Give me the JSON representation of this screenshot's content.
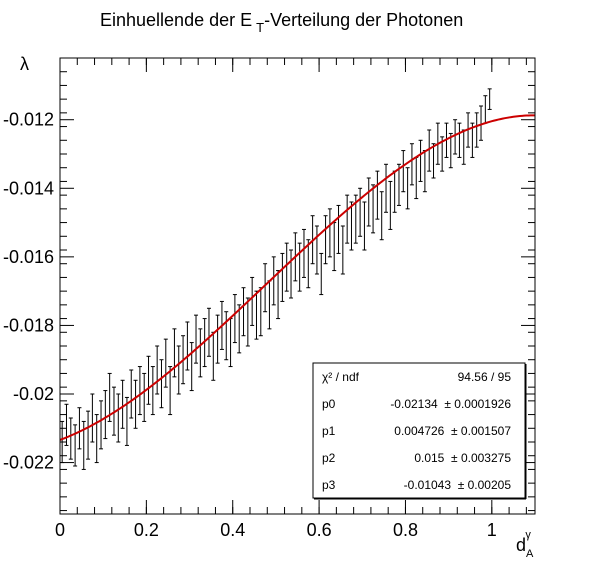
{
  "chart_data": {
    "type": "scatter",
    "title_main": "Einhuellende der E",
    "title_sub": "T",
    "title_rest": "-Verteilung der Photonen",
    "ylabel": "λ",
    "xlabel_main": "d",
    "xlabel_sub": "A",
    "xlabel_sup": "γ",
    "xlim": [
      0,
      1.1
    ],
    "ylim": [
      -0.0235,
      -0.0102
    ],
    "x_ticks": [
      {
        "v": 0,
        "label": "0"
      },
      {
        "v": 0.2,
        "label": "0.2"
      },
      {
        "v": 0.4,
        "label": "0.4"
      },
      {
        "v": 0.6,
        "label": "0.6"
      },
      {
        "v": 0.8,
        "label": "0.8"
      },
      {
        "v": 1.0,
        "label": "1"
      }
    ],
    "y_ticks": [
      {
        "v": -0.022,
        "label": "-0.022"
      },
      {
        "v": -0.02,
        "label": "-0.02"
      },
      {
        "v": -0.018,
        "label": "-0.018"
      },
      {
        "v": -0.016,
        "label": "-0.016"
      },
      {
        "v": -0.014,
        "label": "-0.014"
      },
      {
        "v": -0.012,
        "label": "-0.012"
      }
    ],
    "fit_color": "#cc0000",
    "fit_params": [
      -0.02134,
      0.004726,
      0.015,
      -0.01043
    ],
    "points": [
      [
        0.005,
        -0.0214,
        0.0006
      ],
      [
        0.015,
        -0.0209,
        0.0006
      ],
      [
        0.025,
        -0.0213,
        0.0006
      ],
      [
        0.035,
        -0.0215,
        0.0006
      ],
      [
        0.045,
        -0.021,
        0.0006
      ],
      [
        0.055,
        -0.0215,
        0.0007
      ],
      [
        0.065,
        -0.0212,
        0.0007
      ],
      [
        0.075,
        -0.0207,
        0.0007
      ],
      [
        0.085,
        -0.0213,
        0.0007
      ],
      [
        0.095,
        -0.0209,
        0.0007
      ],
      [
        0.105,
        -0.0206,
        0.0007
      ],
      [
        0.115,
        -0.0201,
        0.0007
      ],
      [
        0.125,
        -0.0205,
        0.0007
      ],
      [
        0.135,
        -0.0207,
        0.0007
      ],
      [
        0.145,
        -0.0203,
        0.0007
      ],
      [
        0.155,
        -0.0208,
        0.0007
      ],
      [
        0.165,
        -0.02,
        0.0007
      ],
      [
        0.175,
        -0.0203,
        0.0007
      ],
      [
        0.185,
        -0.0199,
        0.0007
      ],
      [
        0.195,
        -0.0201,
        0.0007
      ],
      [
        0.205,
        -0.0196,
        0.0007
      ],
      [
        0.215,
        -0.0199,
        0.0007
      ],
      [
        0.225,
        -0.0193,
        0.0007
      ],
      [
        0.235,
        -0.0197,
        0.0007
      ],
      [
        0.245,
        -0.0191,
        0.0007
      ],
      [
        0.255,
        -0.0199,
        0.0007
      ],
      [
        0.265,
        -0.0188,
        0.0007
      ],
      [
        0.275,
        -0.0193,
        0.0007
      ],
      [
        0.285,
        -0.019,
        0.0007
      ],
      [
        0.295,
        -0.0186,
        0.0007
      ],
      [
        0.305,
        -0.0192,
        0.0007
      ],
      [
        0.315,
        -0.0184,
        0.0007
      ],
      [
        0.325,
        -0.0188,
        0.0007
      ],
      [
        0.335,
        -0.0185,
        0.0007
      ],
      [
        0.345,
        -0.0182,
        0.0007
      ],
      [
        0.355,
        -0.0189,
        0.0007
      ],
      [
        0.365,
        -0.0184,
        0.0007
      ],
      [
        0.375,
        -0.018,
        0.0007
      ],
      [
        0.385,
        -0.0183,
        0.0007
      ],
      [
        0.395,
        -0.0185,
        0.0007
      ],
      [
        0.405,
        -0.0178,
        0.0007
      ],
      [
        0.415,
        -0.0181,
        0.0007
      ],
      [
        0.425,
        -0.0176,
        0.0007
      ],
      [
        0.435,
        -0.0179,
        0.0007
      ],
      [
        0.445,
        -0.0173,
        0.0007
      ],
      [
        0.455,
        -0.0177,
        0.0007
      ],
      [
        0.465,
        -0.0176,
        0.0007
      ],
      [
        0.475,
        -0.0169,
        0.0007
      ],
      [
        0.485,
        -0.0174,
        0.0007
      ],
      [
        0.495,
        -0.0167,
        0.0007
      ],
      [
        0.505,
        -0.0171,
        0.0007
      ],
      [
        0.515,
        -0.0166,
        0.0007
      ],
      [
        0.525,
        -0.0163,
        0.0007
      ],
      [
        0.535,
        -0.0165,
        0.0007
      ],
      [
        0.545,
        -0.016,
        0.0007
      ],
      [
        0.555,
        -0.0163,
        0.0007
      ],
      [
        0.565,
        -0.0159,
        0.0007
      ],
      [
        0.575,
        -0.0162,
        0.0007
      ],
      [
        0.585,
        -0.0155,
        0.0007
      ],
      [
        0.595,
        -0.0158,
        0.0007
      ],
      [
        0.605,
        -0.0165,
        0.0006
      ],
      [
        0.615,
        -0.0155,
        0.0007
      ],
      [
        0.625,
        -0.0153,
        0.0007
      ],
      [
        0.635,
        -0.0157,
        0.0007
      ],
      [
        0.645,
        -0.0152,
        0.0007
      ],
      [
        0.655,
        -0.0158,
        0.0007
      ],
      [
        0.665,
        -0.0149,
        0.0007
      ],
      [
        0.675,
        -0.0151,
        0.0007
      ],
      [
        0.685,
        -0.0149,
        0.0007
      ],
      [
        0.695,
        -0.0147,
        0.0007
      ],
      [
        0.705,
        -0.0151,
        0.0007
      ],
      [
        0.715,
        -0.0144,
        0.0007
      ],
      [
        0.725,
        -0.0146,
        0.0007
      ],
      [
        0.735,
        -0.0142,
        0.0007
      ],
      [
        0.745,
        -0.0148,
        0.0007
      ],
      [
        0.755,
        -0.014,
        0.0007
      ],
      [
        0.765,
        -0.0145,
        0.0007
      ],
      [
        0.775,
        -0.0141,
        0.0006
      ],
      [
        0.785,
        -0.0139,
        0.0006
      ],
      [
        0.795,
        -0.0135,
        0.0006
      ],
      [
        0.805,
        -0.014,
        0.0006
      ],
      [
        0.815,
        -0.0133,
        0.0006
      ],
      [
        0.825,
        -0.0137,
        0.0006
      ],
      [
        0.835,
        -0.0132,
        0.0006
      ],
      [
        0.845,
        -0.0135,
        0.0006
      ],
      [
        0.855,
        -0.0129,
        0.0006
      ],
      [
        0.865,
        -0.0132,
        0.0005
      ],
      [
        0.875,
        -0.0127,
        0.0006
      ],
      [
        0.885,
        -0.013,
        0.0005
      ],
      [
        0.895,
        -0.0126,
        0.0005
      ],
      [
        0.905,
        -0.0129,
        0.0005
      ],
      [
        0.915,
        -0.0125,
        0.0005
      ],
      [
        0.925,
        -0.0126,
        0.0005
      ],
      [
        0.935,
        -0.0128,
        0.0005
      ],
      [
        0.945,
        -0.0123,
        0.0005
      ],
      [
        0.955,
        -0.0126,
        0.0005
      ],
      [
        0.965,
        -0.0123,
        0.0005
      ],
      [
        0.975,
        -0.0121,
        0.0005
      ],
      [
        0.985,
        -0.0117,
        0.0004
      ],
      [
        0.995,
        -0.0114,
        0.0003
      ]
    ],
    "stats_box": {
      "rows": [
        {
          "label": "χ² / ndf",
          "value": "94.56 / 95"
        },
        {
          "label": "p0",
          "value": "-0.02134  ± 0.0001926"
        },
        {
          "label": "p1",
          "value": "0.004726  ± 0.001507"
        },
        {
          "label": "p2",
          "value": "0.015  ± 0.003275"
        },
        {
          "label": "p3",
          "value": "-0.01043  ± 0.00205"
        }
      ]
    }
  }
}
